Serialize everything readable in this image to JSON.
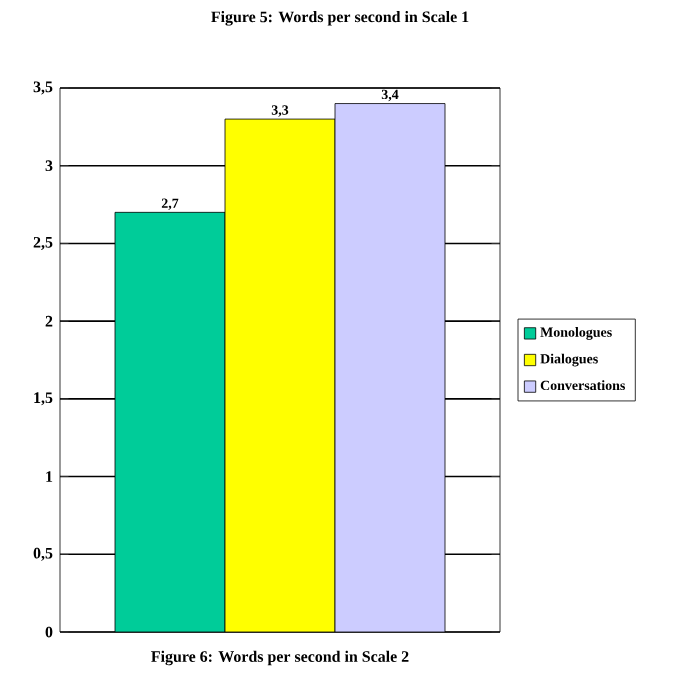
{
  "chart_data": {
    "type": "bar",
    "title": "Figure 6: Words per second in Scale 2",
    "annotations": [
      "Figure 5: Words per second in Scale 1"
    ],
    "categories": [
      null
    ],
    "series": [
      {
        "name": "Monologues",
        "color": "#00cc99",
        "values": [
          2.7
        ],
        "value_labels": [
          "2,7"
        ]
      },
      {
        "name": "Dialogues",
        "color": "#ffff00",
        "values": [
          3.3
        ],
        "value_labels": [
          "3,3"
        ]
      },
      {
        "name": "Conversations",
        "color": "#ccccff",
        "values": [
          3.4
        ],
        "value_labels": [
          "3,4"
        ]
      }
    ],
    "ylim": [
      0,
      3.5
    ],
    "yticks": [
      0,
      {
        "value": 0.5,
        "label": "0,5"
      },
      1,
      {
        "value": 1.5,
        "label": "1,5"
      },
      2,
      {
        "value": 2.5,
        "label": "2,5"
      },
      3,
      {
        "value": 3.5,
        "label": "3,5"
      }
    ],
    "grid": "y",
    "legend": "right"
  }
}
